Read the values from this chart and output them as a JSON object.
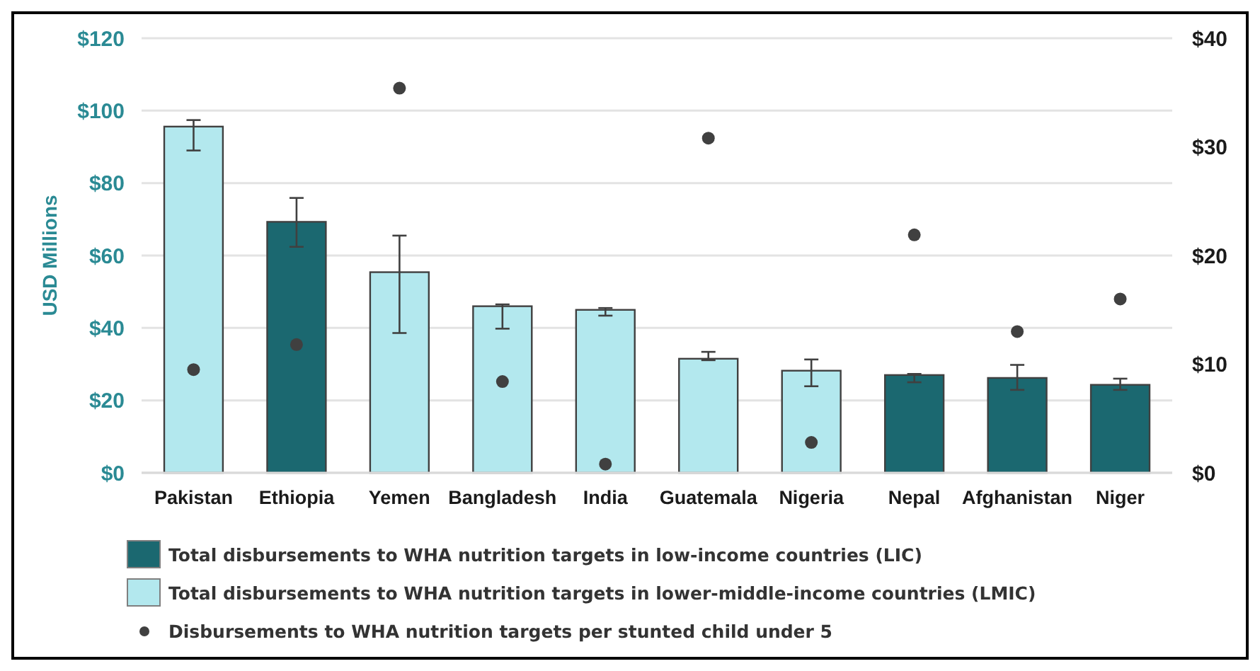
{
  "chart_data": {
    "type": "bar",
    "ylabel": "USD Millions",
    "categories": [
      "Pakistan",
      "Ethiopia",
      "Yemen",
      "Bangladesh",
      "India",
      "Guatemala",
      "Nigeria",
      "Nepal",
      "Afghanistan",
      "Niger"
    ],
    "series": [
      {
        "name": "Total disbursements to WHA nutrition targets in low-income countries (LIC)",
        "color": "#1b6870",
        "values": [
          null,
          69.3,
          null,
          null,
          null,
          null,
          null,
          27,
          26.2,
          24.3
        ],
        "errors": [
          null,
          [
            62.4,
            75.9
          ],
          null,
          null,
          null,
          null,
          null,
          [
            25,
            27.3
          ],
          [
            22.9,
            29.8
          ],
          [
            22.9,
            26
          ]
        ]
      },
      {
        "name": "Total disbursements to WHA nutrition targets in lower-middle-income countries (LMIC)",
        "color": "#b3e8ee",
        "values": [
          95.6,
          null,
          55.4,
          46,
          45,
          31.5,
          28.2,
          null,
          null,
          null
        ],
        "errors": [
          [
            89,
            97.4
          ],
          null,
          [
            38.6,
            65.5
          ],
          [
            39.8,
            46.5
          ],
          [
            43.4,
            45.5
          ],
          [
            31.1,
            33.4
          ],
          [
            23.9,
            31.3
          ],
          null,
          null,
          null
        ]
      },
      {
        "name": "Disbursements to WHA nutrition targets per stunted child under 5",
        "type": "scatter",
        "axis": "y2",
        "color": "#404040",
        "marker": "circle",
        "values": [
          9.5,
          11.8,
          35.4,
          8.4,
          0.8,
          30.8,
          2.8,
          21.9,
          13,
          16
        ]
      }
    ],
    "ylim": [
      0,
      120
    ],
    "yticks": [
      {
        "value": 0,
        "label": "$0"
      },
      {
        "value": 20,
        "label": "$20"
      },
      {
        "value": 40,
        "label": "$40"
      },
      {
        "value": 60,
        "label": "$60"
      },
      {
        "value": 80,
        "label": "$80"
      },
      {
        "value": 100,
        "label": "$100"
      },
      {
        "value": 120,
        "label": "$120"
      }
    ],
    "y2lim": [
      0,
      40
    ],
    "y2ticks": [
      {
        "value": 0,
        "label": "$0"
      },
      {
        "value": 10,
        "label": "$10"
      },
      {
        "value": 20,
        "label": "$20"
      },
      {
        "value": 30,
        "label": "$30"
      },
      {
        "value": 40,
        "label": "$40"
      }
    ],
    "grid": "y",
    "legend": "bottom"
  }
}
